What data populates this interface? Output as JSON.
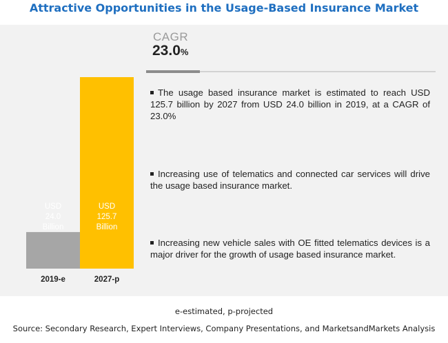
{
  "title": "Attractive Opportunities in the Usage-Based Insurance Market",
  "cagr": {
    "label": "CAGR",
    "value": "23.0",
    "unit": "%"
  },
  "bullets": [
    "The usage based insurance market is estimated to reach USD 125.7 billion by 2027 from USD 24.0 billion in 2019, at a CAGR of 23.0%",
    "Increasing use of telematics and connected car services will drive the usage based insurance market.",
    "Increasing new vehicle sales with OE fitted telematics devices is a major driver for the growth of usage based insurance market."
  ],
  "chart_data": {
    "type": "bar",
    "categories": [
      "2019-e",
      "2027-p"
    ],
    "values": [
      24.0,
      125.7
    ],
    "labels": [
      [
        "USD",
        "24.0",
        "Billion"
      ],
      [
        "USD",
        "125.7",
        "Billion"
      ]
    ],
    "colors": [
      "#a6a6a6",
      "#ffc000"
    ],
    "grid": false
  },
  "footnote": "e-estimated, p-projected",
  "source": "Source: Secondary Research, Expert Interviews, Company Presentations, and MarketsandMarkets Analysis"
}
